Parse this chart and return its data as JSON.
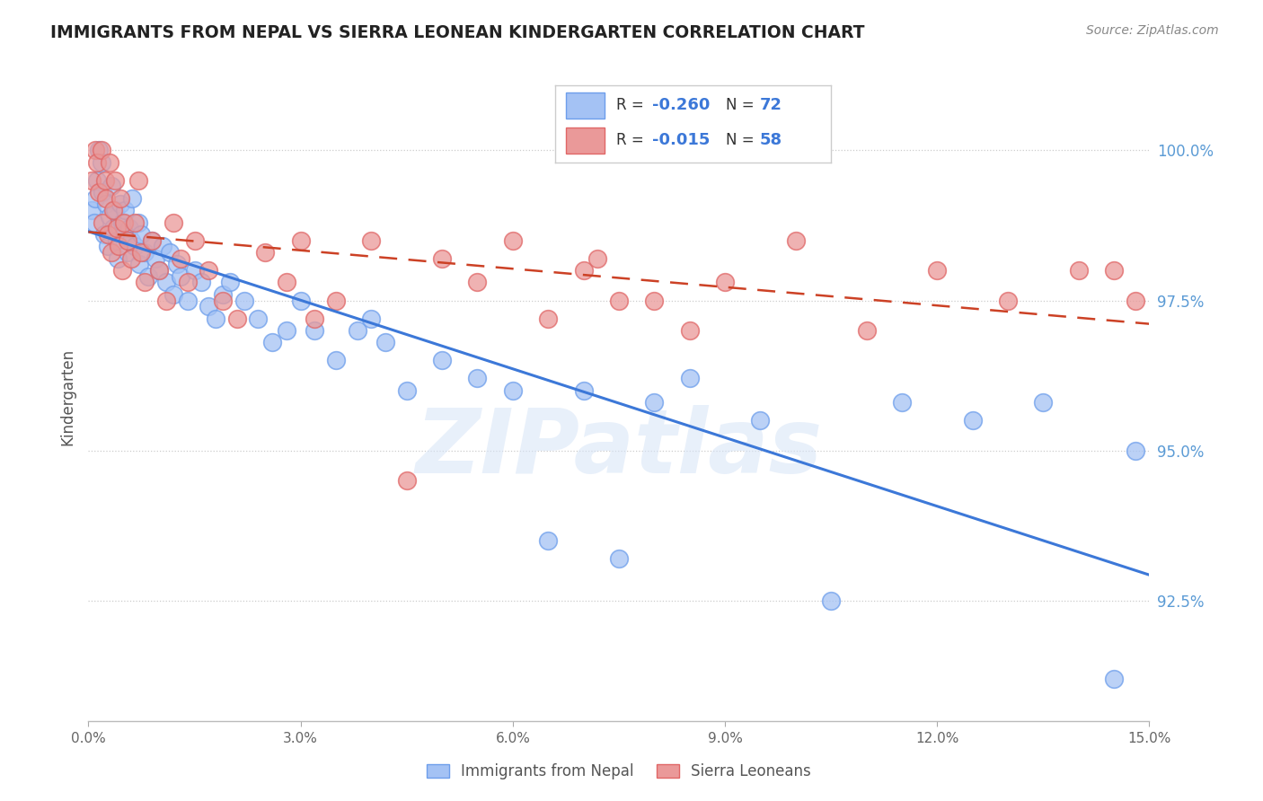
{
  "title": "IMMIGRANTS FROM NEPAL VS SIERRA LEONEAN KINDERGARTEN CORRELATION CHART",
  "source": "Source: ZipAtlas.com",
  "ylabel": "Kindergarten",
  "blue_color": "#a4c2f4",
  "blue_edge": "#6d9eeb",
  "pink_color": "#ea9999",
  "pink_edge": "#e06666",
  "trendline_blue_color": "#3c78d8",
  "trendline_pink_color": "#cc4125",
  "legend_blue_r": "-0.260",
  "legend_blue_n": "72",
  "legend_pink_r": "-0.015",
  "legend_pink_n": "58",
  "xlim": [
    0.0,
    15.0
  ],
  "ylim": [
    90.5,
    101.3
  ],
  "y_ticks": [
    92.5,
    95.0,
    97.5,
    100.0
  ],
  "x_ticks": [
    0.0,
    3.0,
    6.0,
    9.0,
    12.0,
    15.0
  ],
  "watermark": "ZIPatlas",
  "nepal_x": [
    0.05,
    0.08,
    0.1,
    0.12,
    0.15,
    0.18,
    0.2,
    0.22,
    0.25,
    0.28,
    0.3,
    0.32,
    0.35,
    0.38,
    0.4,
    0.42,
    0.45,
    0.48,
    0.5,
    0.52,
    0.55,
    0.58,
    0.6,
    0.62,
    0.65,
    0.7,
    0.72,
    0.75,
    0.8,
    0.85,
    0.9,
    0.95,
    1.0,
    1.05,
    1.1,
    1.15,
    1.2,
    1.25,
    1.3,
    1.4,
    1.5,
    1.6,
    1.7,
    1.8,
    1.9,
    2.0,
    2.2,
    2.4,
    2.6,
    2.8,
    3.0,
    3.2,
    3.5,
    3.8,
    4.0,
    4.2,
    4.5,
    5.0,
    5.5,
    6.0,
    6.5,
    7.0,
    7.5,
    8.0,
    8.5,
    9.5,
    10.5,
    11.5,
    12.5,
    13.5,
    14.5,
    14.8
  ],
  "nepal_y": [
    99.0,
    98.8,
    99.2,
    99.5,
    100.0,
    99.8,
    99.3,
    98.6,
    99.1,
    98.4,
    98.9,
    99.4,
    98.7,
    99.0,
    98.5,
    98.2,
    99.1,
    98.8,
    98.6,
    99.0,
    98.3,
    98.7,
    98.5,
    99.2,
    98.4,
    98.8,
    98.1,
    98.6,
    98.3,
    97.9,
    98.5,
    98.2,
    98.0,
    98.4,
    97.8,
    98.3,
    97.6,
    98.1,
    97.9,
    97.5,
    98.0,
    97.8,
    97.4,
    97.2,
    97.6,
    97.8,
    97.5,
    97.2,
    96.8,
    97.0,
    97.5,
    97.0,
    96.5,
    97.0,
    97.2,
    96.8,
    96.0,
    96.5,
    96.2,
    96.0,
    93.5,
    96.0,
    93.2,
    95.8,
    96.2,
    95.5,
    92.5,
    95.8,
    95.5,
    95.8,
    91.2,
    95.0
  ],
  "sierra_x": [
    0.05,
    0.1,
    0.12,
    0.15,
    0.18,
    0.2,
    0.23,
    0.25,
    0.28,
    0.3,
    0.33,
    0.35,
    0.38,
    0.4,
    0.43,
    0.45,
    0.48,
    0.5,
    0.55,
    0.6,
    0.65,
    0.7,
    0.75,
    0.8,
    0.9,
    1.0,
    1.1,
    1.2,
    1.3,
    1.4,
    1.5,
    1.7,
    1.9,
    2.1,
    2.5,
    2.8,
    3.0,
    3.2,
    3.5,
    4.0,
    4.5,
    5.0,
    5.5,
    6.0,
    6.5,
    7.0,
    7.5,
    8.0,
    9.0,
    10.0,
    11.0,
    12.0,
    13.0,
    14.0,
    14.5,
    14.8,
    7.2,
    8.5
  ],
  "sierra_y": [
    99.5,
    100.0,
    99.8,
    99.3,
    100.0,
    98.8,
    99.5,
    99.2,
    98.6,
    99.8,
    98.3,
    99.0,
    99.5,
    98.7,
    98.4,
    99.2,
    98.0,
    98.8,
    98.5,
    98.2,
    98.8,
    99.5,
    98.3,
    97.8,
    98.5,
    98.0,
    97.5,
    98.8,
    98.2,
    97.8,
    98.5,
    98.0,
    97.5,
    97.2,
    98.3,
    97.8,
    98.5,
    97.2,
    97.5,
    98.5,
    94.5,
    98.2,
    97.8,
    98.5,
    97.2,
    98.0,
    97.5,
    97.5,
    97.8,
    98.5,
    97.0,
    98.0,
    97.5,
    98.0,
    98.0,
    97.5,
    98.2,
    97.0
  ]
}
